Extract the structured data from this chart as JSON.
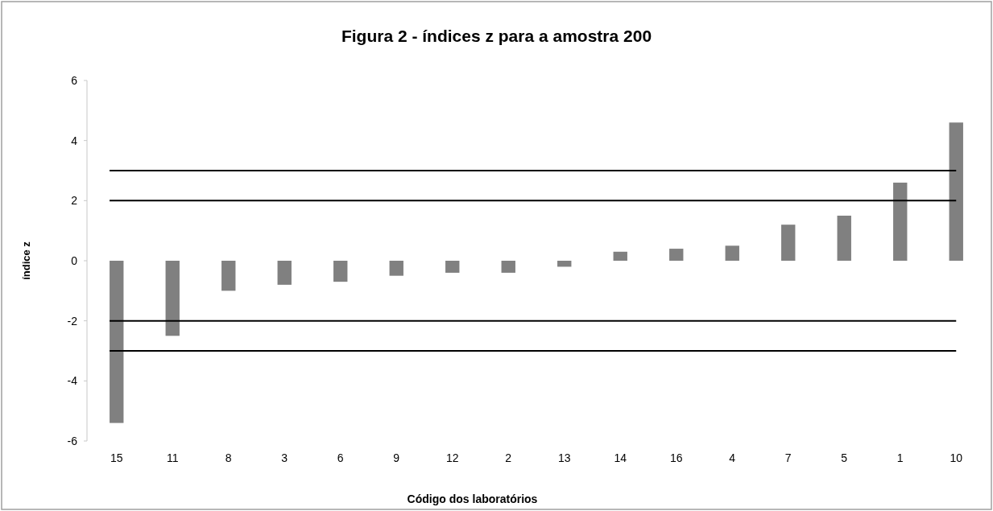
{
  "chart_data": {
    "type": "bar",
    "title": "Figura 2 - índices z para a amostra 200",
    "xlabel": "Código dos laboratórios",
    "ylabel": "índice z",
    "categories": [
      "15",
      "11",
      "8",
      "3",
      "6",
      "9",
      "12",
      "2",
      "13",
      "14",
      "16",
      "4",
      "7",
      "5",
      "1",
      "10"
    ],
    "values": [
      -5.4,
      -2.5,
      -1.0,
      -0.8,
      -0.7,
      -0.5,
      -0.4,
      -0.4,
      -0.2,
      0.3,
      0.4,
      0.5,
      1.2,
      1.5,
      2.6,
      4.6
    ],
    "color": "#808080",
    "ylim": [
      -6,
      6
    ],
    "yticks": [
      -6,
      -4,
      -2,
      0,
      2,
      4,
      6
    ],
    "grid": false,
    "ref_lines": [
      {
        "axis": "y",
        "value": 3,
        "color": "#000000"
      },
      {
        "axis": "y",
        "value": 2,
        "color": "#000000"
      },
      {
        "axis": "y",
        "value": -2,
        "color": "#000000"
      },
      {
        "axis": "y",
        "value": -3,
        "color": "#000000"
      }
    ]
  }
}
